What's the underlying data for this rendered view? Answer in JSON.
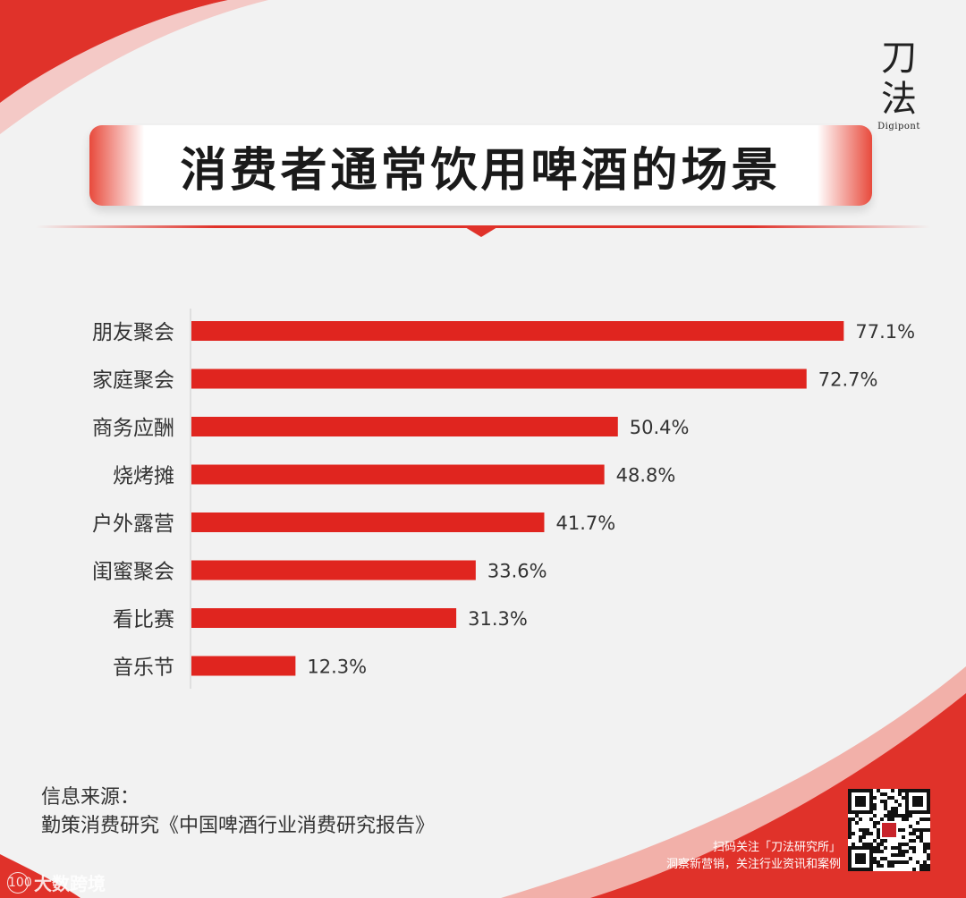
{
  "brand": {
    "logo_line1": "刀",
    "logo_line2": "法",
    "logo_sub": "Digipont"
  },
  "header": {
    "title": "消费者通常饮用啤酒的场景"
  },
  "chart_data": {
    "type": "bar",
    "orientation": "horizontal",
    "title": "消费者通常饮用啤酒的场景",
    "categories": [
      "朋友聚会",
      "家庭聚会",
      "商务应酬",
      "烧烤摊",
      "户外露营",
      "闺蜜聚会",
      "看比赛",
      "音乐节"
    ],
    "values": [
      77.1,
      72.7,
      50.4,
      48.8,
      41.7,
      33.6,
      31.3,
      12.3
    ],
    "value_labels": [
      "77.1%",
      "72.7%",
      "50.4%",
      "48.8%",
      "41.7%",
      "33.6%",
      "31.3%",
      "12.3%"
    ],
    "bar_color": "#e0251f",
    "xlim": [
      0,
      100
    ],
    "grid": false,
    "legend": "none"
  },
  "footer": {
    "source_label": "信息来源：",
    "source_text": "勤策消费研究《中国啤酒行业消费研究报告》",
    "promo_line1": "扫码关注「刀法研究所」",
    "promo_line2": "洞察新营销，关注行业资讯和案例",
    "watermark": "大数跨境",
    "watermark_mark": "100"
  },
  "colors": {
    "accent": "#e0251f",
    "background": "#f2f2f2",
    "text": "#333333"
  }
}
